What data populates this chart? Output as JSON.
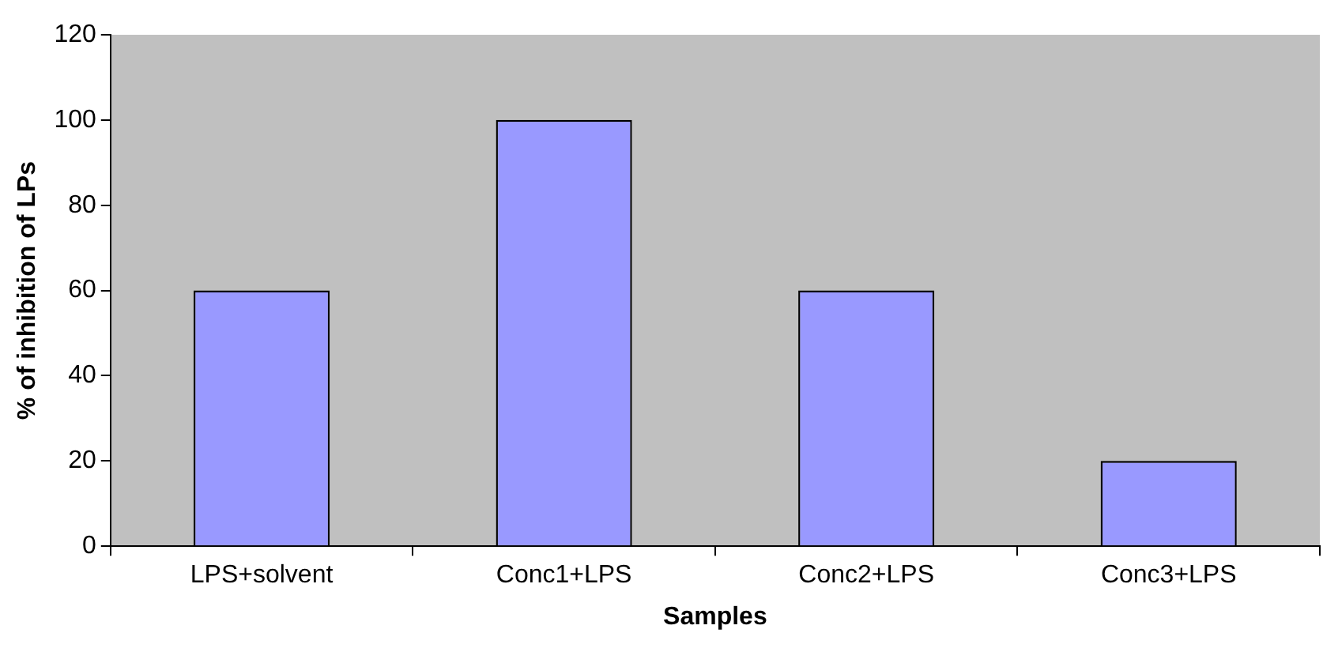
{
  "chart_data": {
    "type": "bar",
    "xlabel": "Samples",
    "ylabel": "% of inhibition of LPs",
    "categories": [
      "LPS+solvent",
      "Conc1+LPS",
      "Conc2+LPS",
      "Conc3+LPS"
    ],
    "values": [
      60,
      100,
      60,
      20
    ],
    "color": "#9999ff",
    "ylim": [
      0,
      120
    ],
    "yticks": [
      0,
      20,
      40,
      60,
      80,
      100,
      120
    ],
    "grid": false,
    "legend": false
  }
}
